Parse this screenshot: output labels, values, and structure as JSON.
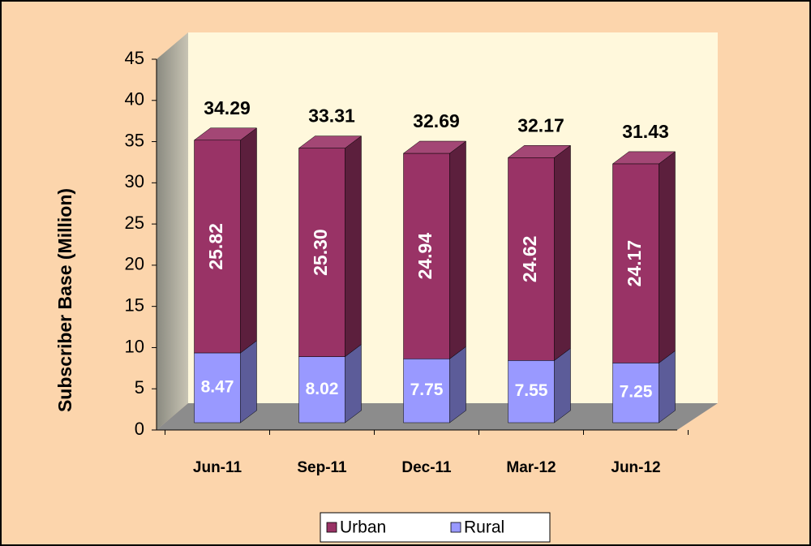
{
  "chart_data": {
    "type": "bar3d_stacked",
    "y_label": "Subscriber Base (Million)",
    "categories": [
      "Jun-11",
      "Sep-11",
      "Dec-11",
      "Mar-12",
      "Jun-12"
    ],
    "series": [
      {
        "name": "Urban",
        "color": "#993366",
        "values": [
          25.82,
          25.3,
          24.94,
          24.62,
          24.17
        ],
        "value_labels": [
          "25.82",
          "25.30",
          "24.94",
          "24.62",
          "24.17"
        ]
      },
      {
        "name": "Rural",
        "color": "#9999ff",
        "values": [
          8.47,
          8.02,
          7.75,
          7.55,
          7.25
        ],
        "value_labels": [
          "8.47",
          "8.02",
          "7.75",
          "7.55",
          "7.25"
        ]
      }
    ],
    "totals": [
      34.29,
      33.31,
      32.69,
      32.17,
      31.43
    ],
    "ylim": [
      0,
      45
    ],
    "yticks": [
      0,
      5,
      10,
      15,
      20,
      25,
      30,
      35,
      40,
      45
    ],
    "legend": "bottom"
  }
}
